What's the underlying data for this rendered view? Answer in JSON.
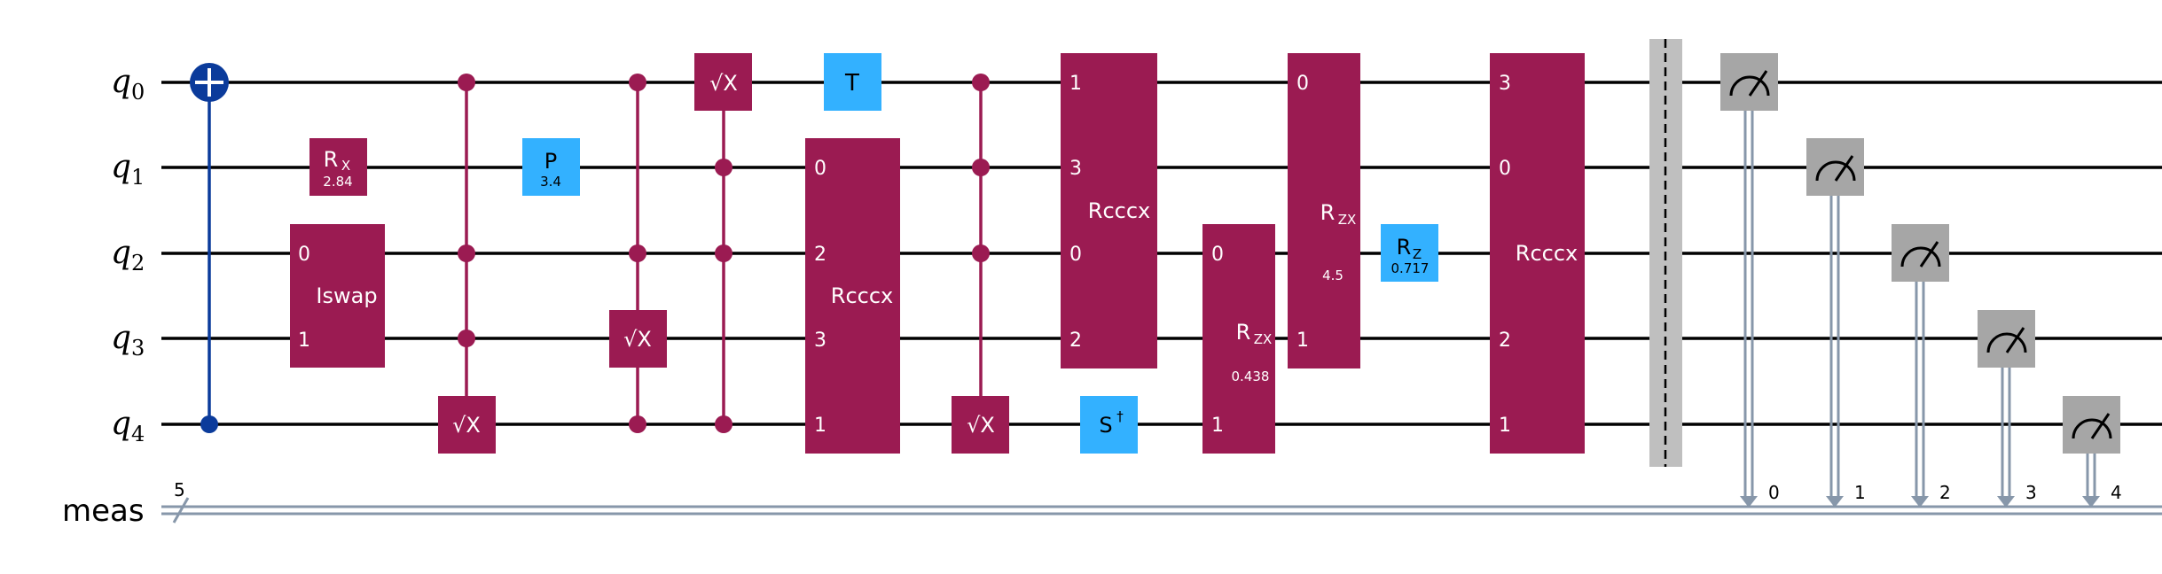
{
  "qubits": [
    {
      "name": "q",
      "index": "0"
    },
    {
      "name": "q",
      "index": "1"
    },
    {
      "name": "q",
      "index": "2"
    },
    {
      "name": "q",
      "index": "3"
    },
    {
      "name": "q",
      "index": "4"
    }
  ],
  "classical": {
    "name": "meas",
    "width": "5",
    "bits": [
      "0",
      "1",
      "2",
      "3",
      "4"
    ]
  },
  "colors": {
    "multi_gate": "#9b1b52",
    "single_gate": "#33b1ff",
    "cnot": "#0b3b9b",
    "measure": "#a6a6a6",
    "wire": "#000000",
    "classical_wire": "#8797aa",
    "barrier": "#bfbfbf"
  },
  "gates": {
    "rx": {
      "label": "R",
      "sub": "X",
      "param": "2.84"
    },
    "iswap": {
      "label": "Iswap",
      "port0": "0",
      "port1": "1"
    },
    "sqrtx_1": {
      "label": "√X"
    },
    "p": {
      "label": "P",
      "param": "3.4"
    },
    "sqrtx_2": {
      "label": "√X"
    },
    "sqrtx_3": {
      "label": "√X"
    },
    "t": {
      "label": "T"
    },
    "rcccx_1": {
      "label": "Rcccx",
      "ports": [
        "0",
        "2",
        "3",
        "1"
      ]
    },
    "sqrtx_4": {
      "label": "√X"
    },
    "rcccx_2": {
      "label": "Rcccx",
      "ports": [
        "1",
        "3",
        "0",
        "2"
      ]
    },
    "sdg": {
      "label": "S",
      "sup": "†"
    },
    "rzx_1": {
      "label": "R",
      "sub": "ZX",
      "param": "0.438",
      "port0": "0",
      "port1": "1"
    },
    "rzx_2": {
      "label": "R",
      "sub": "ZX",
      "param": "4.5",
      "port0": "0",
      "port1": "1"
    },
    "rz": {
      "label": "R",
      "sub": "Z",
      "param": "0.717"
    },
    "rcccx_3": {
      "label": "Rcccx",
      "ports": [
        "3",
        "0",
        "",
        "2",
        "1"
      ]
    }
  }
}
